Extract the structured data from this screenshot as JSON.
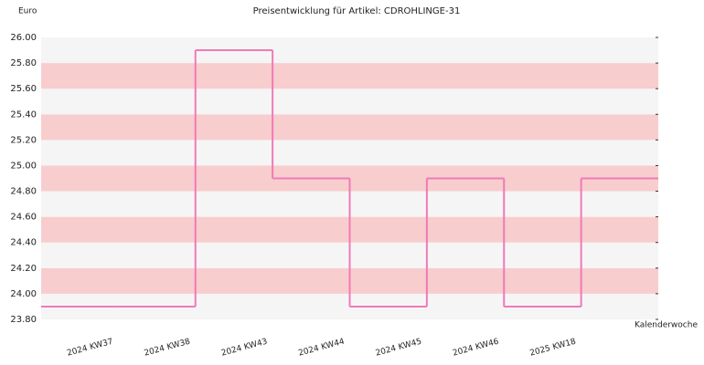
{
  "chart_data": {
    "type": "step-line",
    "title": "Preisentwicklung für Artikel: CDROHLINGE-31",
    "y_label": "Euro",
    "x_label": "Kalenderwoche",
    "categories": [
      "2024 KW37",
      "2024 KW38",
      "2024 KW43",
      "2024 KW44",
      "2024 KW45",
      "2024 KW46",
      "2025 KW18",
      null
    ],
    "values": [
      23.9,
      23.9,
      25.9,
      24.9,
      23.9,
      24.9,
      23.9,
      24.9
    ],
    "color": "#f07ab8",
    "band_colors": [
      "#f5f5f5",
      "#f8cdcd"
    ],
    "ylim": [
      23.8,
      26.0
    ],
    "yticks": [
      {
        "value": 23.8,
        "label": "23.80"
      },
      {
        "value": 24.0,
        "label": "24.00"
      },
      {
        "value": 24.2,
        "label": "24.20"
      },
      {
        "value": 24.4,
        "label": "24.40"
      },
      {
        "value": 24.6,
        "label": "24.60"
      },
      {
        "value": 24.8,
        "label": "24.80"
      },
      {
        "value": 25.0,
        "label": "25.00"
      },
      {
        "value": 25.2,
        "label": "25.20"
      },
      {
        "value": 25.4,
        "label": "25.40"
      },
      {
        "value": 25.6,
        "label": "25.60"
      },
      {
        "value": 25.8,
        "label": "25.80"
      },
      {
        "value": 26.0,
        "label": "26.00"
      }
    ]
  }
}
